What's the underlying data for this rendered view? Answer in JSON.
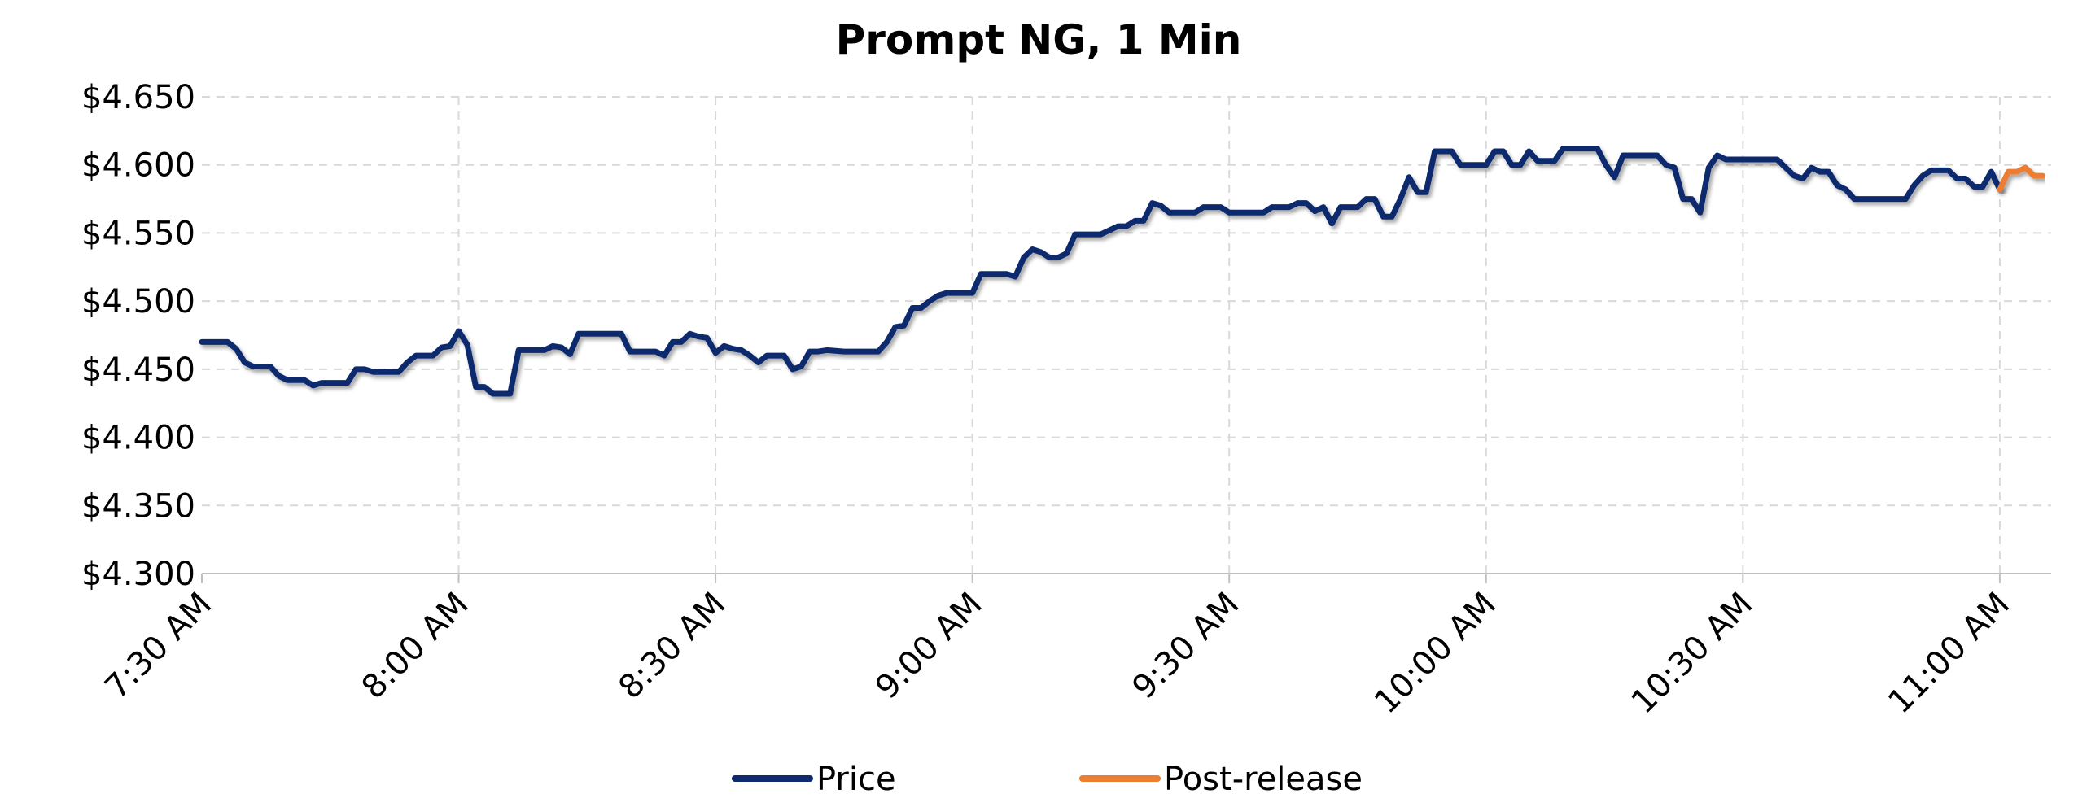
{
  "chart_data": {
    "type": "line",
    "title": "Prompt NG, 1 Min",
    "xlabel": "",
    "ylabel": "",
    "ylim": [
      4.3,
      4.65
    ],
    "y_ticks": [
      "$4.300",
      "$4.350",
      "$4.400",
      "$4.450",
      "$4.500",
      "$4.550",
      "$4.600",
      "$4.650"
    ],
    "x_tick_labels": [
      "7:30 AM",
      "8:00 AM",
      "8:30 AM",
      "9:00 AM",
      "9:30 AM",
      "10:00 AM",
      "10:30 AM",
      "11:00 AM"
    ],
    "x_tick_minutes": [
      0,
      30,
      60,
      90,
      120,
      150,
      180,
      210
    ],
    "xlim_minutes": [
      0,
      216
    ],
    "grid": true,
    "legend_position": "bottom",
    "series": [
      {
        "name": "Price",
        "color": "#0d2b6e",
        "points": [
          [
            0,
            4.47
          ],
          [
            3,
            4.47
          ],
          [
            4,
            4.465
          ],
          [
            5,
            4.455
          ],
          [
            6,
            4.452
          ],
          [
            8,
            4.452
          ],
          [
            9,
            4.445
          ],
          [
            10,
            4.442
          ],
          [
            12,
            4.442
          ],
          [
            13,
            4.438
          ],
          [
            14,
            4.44
          ],
          [
            17,
            4.44
          ],
          [
            18,
            4.45
          ],
          [
            19,
            4.45
          ],
          [
            20,
            4.448
          ],
          [
            23,
            4.448
          ],
          [
            24,
            4.455
          ],
          [
            25,
            4.46
          ],
          [
            27,
            4.46
          ],
          [
            28,
            4.466
          ],
          [
            29,
            4.467
          ],
          [
            30,
            4.478
          ],
          [
            31,
            4.468
          ],
          [
            32,
            4.437
          ],
          [
            33,
            4.437
          ],
          [
            34,
            4.432
          ],
          [
            36,
            4.432
          ],
          [
            37,
            4.464
          ],
          [
            40,
            4.464
          ],
          [
            41,
            4.467
          ],
          [
            42,
            4.466
          ],
          [
            43,
            4.461
          ],
          [
            44,
            4.476
          ],
          [
            49,
            4.476
          ],
          [
            50,
            4.463
          ],
          [
            53,
            4.463
          ],
          [
            54,
            4.46
          ],
          [
            55,
            4.47
          ],
          [
            56,
            4.47
          ],
          [
            57,
            4.476
          ],
          [
            58,
            4.474
          ],
          [
            59,
            4.473
          ],
          [
            60,
            4.462
          ],
          [
            61,
            4.467
          ],
          [
            62,
            4.465
          ],
          [
            63,
            4.464
          ],
          [
            64,
            4.46
          ],
          [
            65,
            4.455
          ],
          [
            66,
            4.46
          ],
          [
            68,
            4.46
          ],
          [
            69,
            4.45
          ],
          [
            70,
            4.452
          ],
          [
            71,
            4.463
          ],
          [
            72,
            4.463
          ],
          [
            73,
            4.464
          ],
          [
            75,
            4.463
          ],
          [
            79,
            4.463
          ],
          [
            80,
            4.47
          ],
          [
            81,
            4.481
          ],
          [
            82,
            4.482
          ],
          [
            83,
            4.495
          ],
          [
            84,
            4.495
          ],
          [
            85,
            4.5
          ],
          [
            86,
            4.504
          ],
          [
            87,
            4.506
          ],
          [
            90,
            4.506
          ],
          [
            91,
            4.52
          ],
          [
            94,
            4.52
          ],
          [
            95,
            4.518
          ],
          [
            96,
            4.532
          ],
          [
            97,
            4.538
          ],
          [
            98,
            4.536
          ],
          [
            99,
            4.532
          ],
          [
            100,
            4.532
          ],
          [
            101,
            4.535
          ],
          [
            102,
            4.549
          ],
          [
            105,
            4.549
          ],
          [
            106,
            4.552
          ],
          [
            107,
            4.555
          ],
          [
            108,
            4.555
          ],
          [
            109,
            4.559
          ],
          [
            110,
            4.559
          ],
          [
            111,
            4.572
          ],
          [
            112,
            4.57
          ],
          [
            113,
            4.565
          ],
          [
            116,
            4.565
          ],
          [
            117,
            4.569
          ],
          [
            119,
            4.569
          ],
          [
            120,
            4.565
          ],
          [
            124,
            4.565
          ],
          [
            125,
            4.569
          ],
          [
            127,
            4.569
          ],
          [
            128,
            4.572
          ],
          [
            129,
            4.572
          ],
          [
            130,
            4.566
          ],
          [
            131,
            4.569
          ],
          [
            132,
            4.557
          ],
          [
            133,
            4.569
          ],
          [
            135,
            4.569
          ],
          [
            136,
            4.575
          ],
          [
            137,
            4.575
          ],
          [
            138,
            4.562
          ],
          [
            139,
            4.562
          ],
          [
            140,
            4.575
          ],
          [
            141,
            4.591
          ],
          [
            142,
            4.58
          ],
          [
            143,
            4.58
          ],
          [
            144,
            4.61
          ],
          [
            146,
            4.61
          ],
          [
            147,
            4.6
          ],
          [
            150,
            4.6
          ],
          [
            151,
            4.61
          ],
          [
            152,
            4.61
          ],
          [
            153,
            4.6
          ],
          [
            154,
            4.6
          ],
          [
            155,
            4.61
          ],
          [
            156,
            4.603
          ],
          [
            158,
            4.603
          ],
          [
            159,
            4.612
          ],
          [
            163,
            4.612
          ],
          [
            164,
            4.6
          ],
          [
            165,
            4.591
          ],
          [
            166,
            4.607
          ],
          [
            170,
            4.607
          ],
          [
            171,
            4.6
          ],
          [
            172,
            4.598
          ],
          [
            173,
            4.575
          ],
          [
            174,
            4.575
          ],
          [
            175,
            4.565
          ],
          [
            176,
            4.598
          ],
          [
            177,
            4.607
          ],
          [
            178,
            4.604
          ],
          [
            184,
            4.604
          ],
          [
            185,
            4.598
          ],
          [
            186,
            4.592
          ],
          [
            187,
            4.59
          ],
          [
            188,
            4.598
          ],
          [
            189,
            4.595
          ],
          [
            190,
            4.595
          ],
          [
            191,
            4.585
          ],
          [
            192,
            4.582
          ],
          [
            193,
            4.575
          ],
          [
            199,
            4.575
          ],
          [
            200,
            4.585
          ],
          [
            201,
            4.592
          ],
          [
            202,
            4.596
          ],
          [
            204,
            4.596
          ],
          [
            205,
            4.59
          ],
          [
            206,
            4.59
          ],
          [
            207,
            4.584
          ],
          [
            208,
            4.584
          ],
          [
            209,
            4.595
          ],
          [
            210,
            4.582
          ]
        ]
      },
      {
        "name": "Post-release",
        "color": "#ed7d31",
        "points": [
          [
            210,
            4.582
          ],
          [
            211,
            4.595
          ],
          [
            212,
            4.595
          ],
          [
            213,
            4.598
          ],
          [
            214,
            4.592
          ],
          [
            215,
            4.592
          ]
        ]
      }
    ]
  }
}
